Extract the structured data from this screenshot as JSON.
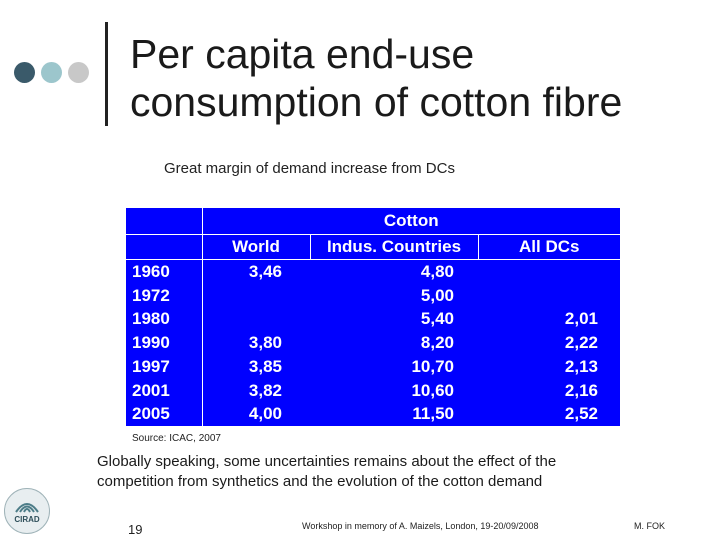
{
  "slide": {
    "title_line1": "Per capita end-use",
    "title_line2": "consumption of cotton fibre",
    "subtitle": "Great margin of demand increase from DCs",
    "table": {
      "group_header": "Cotton",
      "columns": [
        "World",
        "Indus. Countries",
        "All DCs"
      ],
      "rows": [
        {
          "year": "1960",
          "world": "3,46",
          "indus": "4,80",
          "dcs": ""
        },
        {
          "year": "1972",
          "world": "",
          "indus": "5,00",
          "dcs": ""
        },
        {
          "year": "1980",
          "world": "",
          "indus": "5,40",
          "dcs": "2,01"
        },
        {
          "year": "1990",
          "world": "3,80",
          "indus": "8,20",
          "dcs": "2,22"
        },
        {
          "year": "1997",
          "world": "3,85",
          "indus": "10,70",
          "dcs": "2,13"
        },
        {
          "year": "2001",
          "world": "3,82",
          "indus": "10,60",
          "dcs": "2,16"
        },
        {
          "year": "2005",
          "world": "4,00",
          "indus": "11,50",
          "dcs": "2,52"
        }
      ],
      "background_color": "#0000ff"
    },
    "source": "Source: ICAC, 2007",
    "body_line1": "Globally speaking, some uncertainties remains about the effect of the",
    "body_line2": "competition from synthetics and the evolution of the cotton demand",
    "logo_text": "CIRAD",
    "page_number": "19",
    "footer": "Workshop in memory of A. Maizels, London, 19-20/09/2008",
    "author": "M. FOK"
  }
}
